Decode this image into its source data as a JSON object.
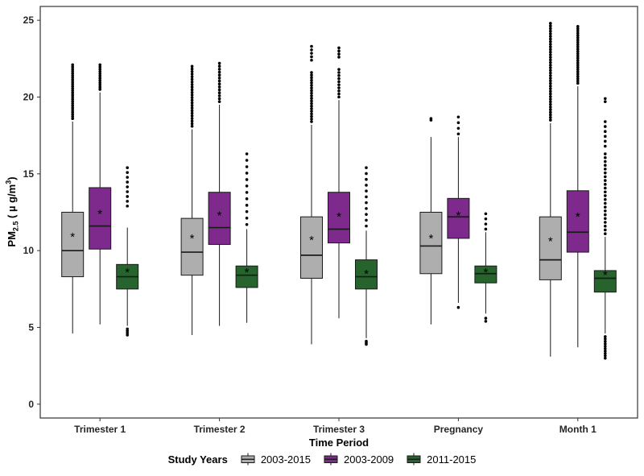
{
  "chart_data": {
    "type": "boxplot",
    "title": "",
    "xlabel": "Time Period",
    "ylabel": "PM2.5 ( µ g/m3 )",
    "ylabel_parts": {
      "prefix": "PM",
      "sub": "2.5",
      "mid": " ( µ g/m",
      "sup": "3",
      "suffix": ")"
    },
    "ylim": [
      0,
      25
    ],
    "yticks": [
      0,
      5,
      10,
      15,
      20,
      25
    ],
    "categories": [
      "Trimester 1",
      "Trimester 2",
      "Trimester 3",
      "Pregnancy",
      "Month 1"
    ],
    "legend_title": "Study Years",
    "grid": false,
    "legend_position": "bottom",
    "series": [
      {
        "name": "2003-2015",
        "color": "#AEAEAE"
      },
      {
        "name": "2003-2009",
        "color": "#7D2A8C"
      },
      {
        "name": "2011-2015",
        "color": "#26632D"
      }
    ],
    "boxes": [
      {
        "category": "Trimester 1",
        "series": "2003-2015",
        "whisker_low": 4.6,
        "q1": 8.3,
        "median": 10.0,
        "q3": 12.5,
        "whisker_high": 18.4,
        "mean": 10.9,
        "outliers": [
          [
            18.6,
            22.1,
            26
          ]
        ]
      },
      {
        "category": "Trimester 1",
        "series": "2003-2009",
        "whisker_low": 5.2,
        "q1": 10.1,
        "median": 11.6,
        "q3": 14.1,
        "whisker_high": 20.3,
        "mean": 12.4,
        "outliers": [
          [
            20.5,
            22.1,
            12
          ]
        ]
      },
      {
        "category": "Trimester 1",
        "series": "2011-2015",
        "whisker_low": 5.1,
        "q1": 7.5,
        "median": 8.3,
        "q3": 9.1,
        "whisker_high": 11.5,
        "mean": 8.6,
        "outliers": [
          [
            12.9,
            15.4,
            9
          ],
          [
            4.5,
            4.9,
            4
          ]
        ]
      },
      {
        "category": "Trimester 2",
        "series": "2003-2015",
        "whisker_low": 4.5,
        "q1": 8.4,
        "median": 9.9,
        "q3": 12.1,
        "whisker_high": 17.9,
        "mean": 10.8,
        "outliers": [
          [
            18.1,
            22.0,
            24
          ]
        ]
      },
      {
        "category": "Trimester 2",
        "series": "2003-2009",
        "whisker_low": 5.1,
        "q1": 10.4,
        "median": 11.5,
        "q3": 13.8,
        "whisker_high": 19.5,
        "mean": 12.3,
        "outliers": [
          [
            19.7,
            22.2,
            14
          ]
        ]
      },
      {
        "category": "Trimester 2",
        "series": "2011-2015",
        "whisker_low": 5.3,
        "q1": 7.6,
        "median": 8.4,
        "q3": 9.0,
        "whisker_high": 11.4,
        "mean": 8.6,
        "outliers": [
          [
            11.7,
            16.3,
            12
          ]
        ]
      },
      {
        "category": "Trimester 3",
        "series": "2003-2015",
        "whisker_low": 3.9,
        "q1": 8.2,
        "median": 9.7,
        "q3": 12.2,
        "whisker_high": 18.2,
        "mean": 10.7,
        "outliers": [
          [
            18.4,
            21.6,
            20
          ],
          [
            22.4,
            23.3,
            5
          ]
        ]
      },
      {
        "category": "Trimester 3",
        "series": "2003-2009",
        "whisker_low": 5.6,
        "q1": 10.5,
        "median": 11.4,
        "q3": 13.8,
        "whisker_high": 19.8,
        "mean": 12.2,
        "outliers": [
          [
            20.0,
            21.8,
            10
          ],
          [
            22.6,
            23.2,
            4
          ]
        ]
      },
      {
        "category": "Trimester 3",
        "series": "2011-2015",
        "whisker_low": 4.3,
        "q1": 7.5,
        "median": 8.3,
        "q3": 9.4,
        "whisker_high": 11.3,
        "mean": 8.5,
        "outliers": [
          [
            11.6,
            15.4,
            11
          ],
          [
            3.9,
            4.1,
            3
          ]
        ]
      },
      {
        "category": "Pregnancy",
        "series": "2003-2015",
        "whisker_low": 5.2,
        "q1": 8.5,
        "median": 10.3,
        "q3": 12.5,
        "whisker_high": 17.4,
        "mean": 10.8,
        "outliers": [
          [
            18.5,
            18.6,
            2
          ]
        ]
      },
      {
        "category": "Pregnancy",
        "series": "2003-2009",
        "whisker_low": 6.6,
        "q1": 10.8,
        "median": 12.2,
        "q3": 13.4,
        "whisker_high": 17.4,
        "mean": 12.3,
        "outliers": [
          [
            17.6,
            18.7,
            4
          ],
          [
            6.3,
            6.3,
            1
          ]
        ]
      },
      {
        "category": "Pregnancy",
        "series": "2011-2015",
        "whisker_low": 5.9,
        "q1": 7.9,
        "median": 8.5,
        "q3": 9.0,
        "whisker_high": 11.2,
        "mean": 8.6,
        "outliers": [
          [
            11.4,
            12.4,
            4
          ],
          [
            5.4,
            5.6,
            2
          ]
        ]
      },
      {
        "category": "Month 1",
        "series": "2003-2015",
        "whisker_low": 3.1,
        "q1": 8.1,
        "median": 9.4,
        "q3": 12.2,
        "whisker_high": 18.3,
        "mean": 10.6,
        "outliers": [
          [
            18.5,
            24.8,
            38
          ]
        ]
      },
      {
        "category": "Month 1",
        "series": "2003-2009",
        "whisker_low": 3.7,
        "q1": 9.9,
        "median": 11.2,
        "q3": 13.9,
        "whisker_high": 20.7,
        "mean": 12.2,
        "outliers": [
          [
            20.9,
            24.6,
            26
          ]
        ]
      },
      {
        "category": "Month 1",
        "series": "2011-2015",
        "whisker_low": 4.6,
        "q1": 7.3,
        "median": 8.2,
        "q3": 8.7,
        "whisker_high": 10.9,
        "mean": 8.4,
        "outliers": [
          [
            11.1,
            16.3,
            22
          ],
          [
            16.8,
            18.4,
            6
          ],
          [
            19.7,
            19.9,
            2
          ],
          [
            3.0,
            4.4,
            10
          ]
        ]
      }
    ]
  }
}
